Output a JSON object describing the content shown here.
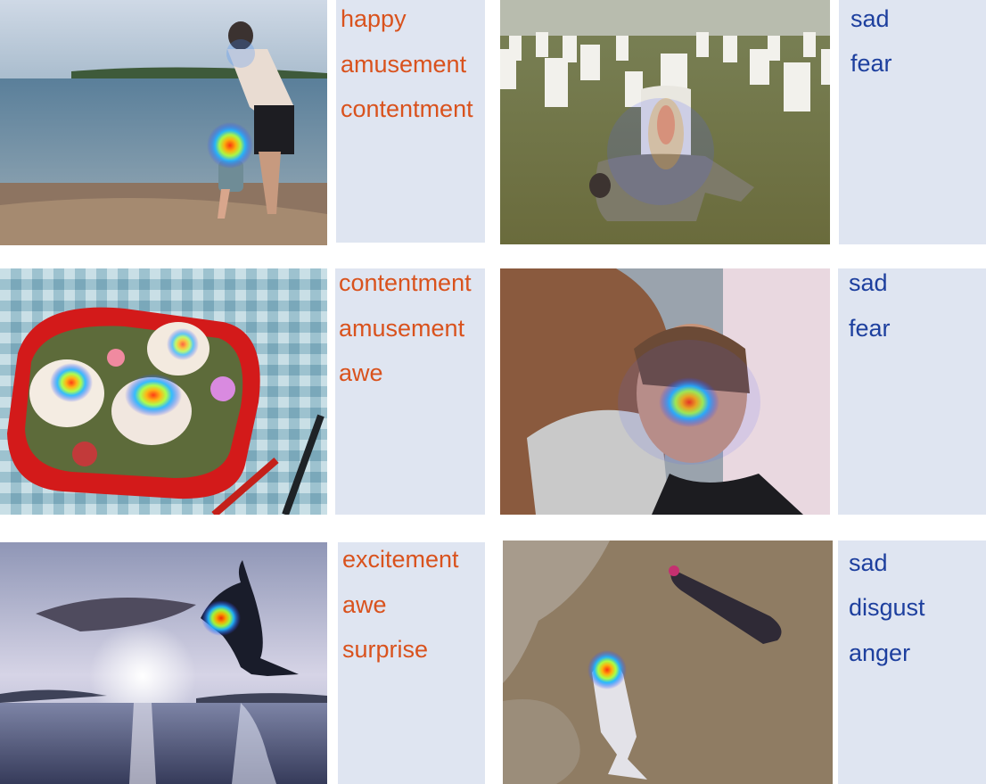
{
  "colors": {
    "positive": "#d9521d",
    "negative": "#1d3f9e",
    "panel": "#dfe5f1"
  },
  "cells": [
    {
      "id": "beach",
      "scene": "father helping toddler walk in shallow water at a beach",
      "labels": [
        "happy",
        "amusement",
        "contentment"
      ]
    },
    {
      "id": "cemetery",
      "scene": "person lying beside a white headstone in a military cemetery",
      "labels": [
        "sad",
        "fear"
      ]
    },
    {
      "id": "bento",
      "scene": "red bento lunch box with cat-shaped rice balls on a checked cloth",
      "labels": [
        "contentment",
        "amusement",
        "awe"
      ]
    },
    {
      "id": "embrace",
      "scene": "crying woman embracing another person",
      "labels": [
        "sad",
        "fear"
      ]
    },
    {
      "id": "dolphin",
      "scene": "dolphin leaping above the sea at sunset",
      "labels": [
        "excitement",
        "awe",
        "surprise"
      ]
    },
    {
      "id": "dead-fish",
      "scene": "dead fish and a bottle washed up on a sandy shore",
      "labels": [
        "sad",
        "disgust",
        "anger"
      ]
    }
  ]
}
